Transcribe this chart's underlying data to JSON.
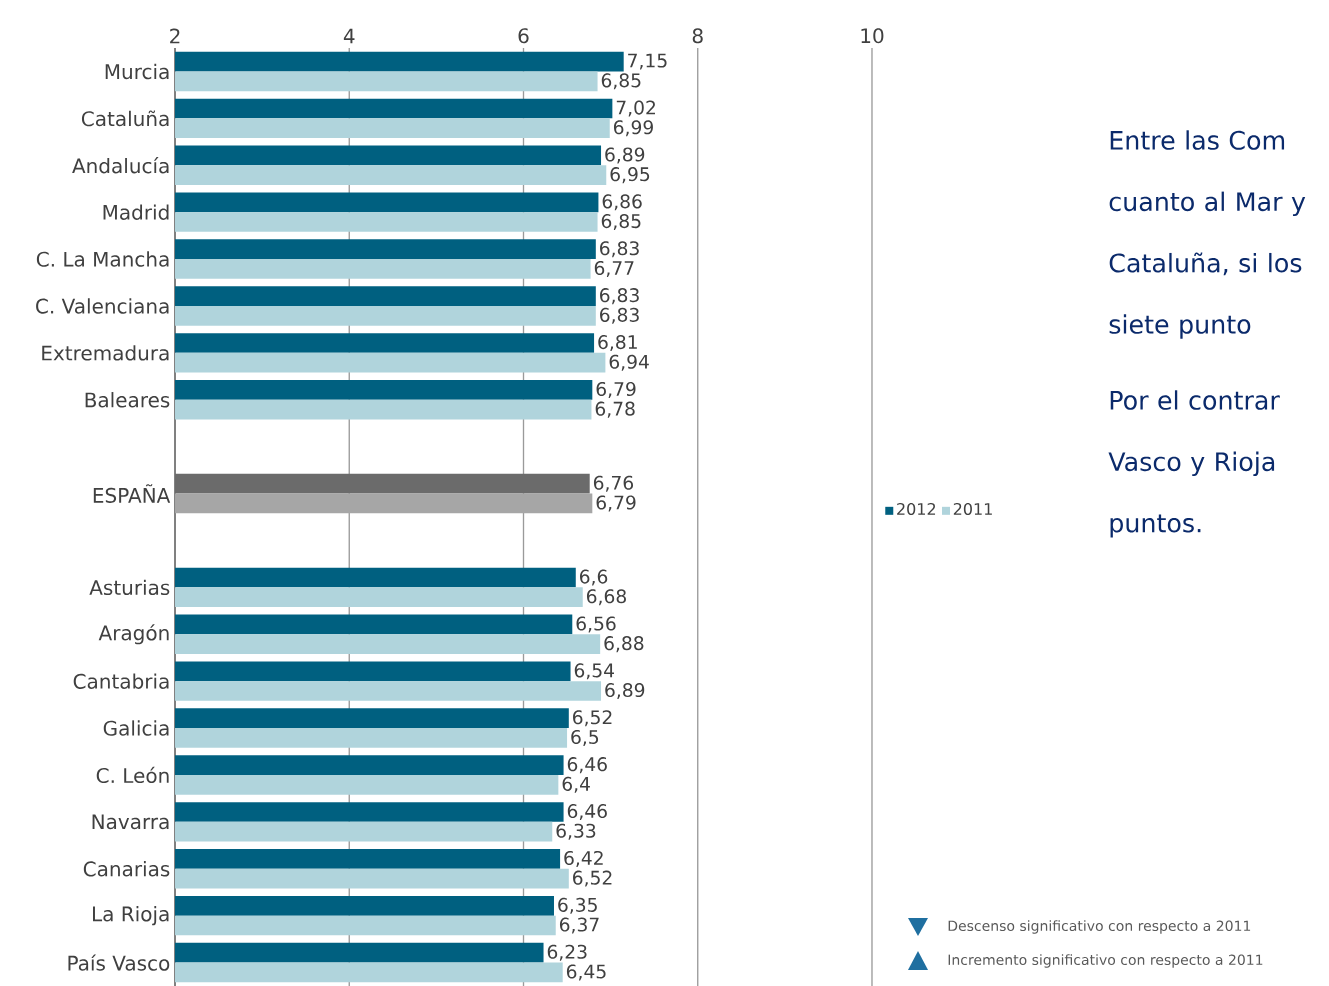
{
  "chart_data": {
    "type": "bar",
    "orientation": "horizontal",
    "categories": [
      "Murcia",
      "Cataluña",
      "Andalucía",
      "Madrid",
      "C. La Mancha",
      "C. Valenciana",
      "Extremadura",
      "Baleares",
      null,
      "ESPAÑA",
      null,
      "Asturias",
      "Aragón",
      "Cantabria",
      "Galicia",
      "C. León",
      "Navarra",
      "Canarias",
      "La Rioja",
      "País Vasco"
    ],
    "series": [
      {
        "name": "2012",
        "color": "#006080",
        "colors": [
          "#006080",
          "#006080",
          "#006080",
          "#006080",
          "#006080",
          "#006080",
          "#006080",
          "#006080",
          null,
          "#6b6b6b",
          null,
          "#006080",
          "#006080",
          "#006080",
          "#006080",
          "#006080",
          "#006080",
          "#006080",
          "#006080",
          "#006080"
        ],
        "values": [
          7.15,
          7.02,
          6.89,
          6.86,
          6.83,
          6.83,
          6.81,
          6.79,
          null,
          6.76,
          null,
          6.6,
          6.56,
          6.54,
          6.52,
          6.46,
          6.46,
          6.42,
          6.35,
          6.23
        ],
        "value_labels": [
          "7,15",
          "7,02",
          "6,89",
          "6,86",
          "6,83",
          "6,83",
          "6,81",
          "6,79",
          null,
          "6,76",
          null,
          "6,6",
          "6,56",
          "6,54",
          "6,52",
          "6,46",
          "6,46",
          "6,42",
          "6,35",
          "6,23"
        ]
      },
      {
        "name": "2011",
        "color": "#b0d4dc",
        "colors": [
          "#b0d4dc",
          "#b0d4dc",
          "#b0d4dc",
          "#b0d4dc",
          "#b0d4dc",
          "#b0d4dc",
          "#b0d4dc",
          "#b0d4dc",
          null,
          "#a6a6a6",
          null,
          "#b0d4dc",
          "#b0d4dc",
          "#b0d4dc",
          "#b0d4dc",
          "#b0d4dc",
          "#b0d4dc",
          "#b0d4dc",
          "#b0d4dc",
          "#b0d4dc"
        ],
        "values": [
          6.85,
          6.99,
          6.95,
          6.85,
          6.77,
          6.83,
          6.94,
          6.78,
          null,
          6.79,
          null,
          6.68,
          6.88,
          6.89,
          6.5,
          6.4,
          6.33,
          6.52,
          6.37,
          6.45
        ],
        "value_labels": [
          "6,85",
          "6,99",
          "6,95",
          "6,85",
          "6,77",
          "6,83",
          "6,94",
          "6,78",
          null,
          "6,79",
          null,
          "6,68",
          "6,88",
          "6,89",
          "6,5",
          "6,4",
          "6,33",
          "6,52",
          "6,37",
          "6,45"
        ]
      }
    ],
    "xlim": [
      2,
      10
    ],
    "xticks": [
      2,
      4,
      6,
      8,
      10
    ],
    "grid": "x",
    "legend": "right",
    "annotations": [
      "Entre las Com cuanto al Mar y Cataluña, si los siete punto",
      "Por el contrar Vasco y Rioja puntos.",
      "Descenso significativo con respecto a 2011",
      "Incremento significativo con respecto a 2011"
    ]
  }
}
